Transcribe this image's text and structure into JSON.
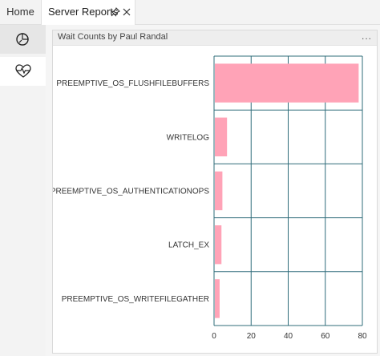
{
  "tabs": {
    "home_label": "Home",
    "active_label": "Server Reports",
    "pin_icon": "pin-icon",
    "close_icon": "close-icon"
  },
  "sidebar": {
    "items": [
      {
        "icon": "chart-dial-icon",
        "selected": true
      },
      {
        "icon": "heart-pulse-icon",
        "selected": false
      }
    ]
  },
  "card": {
    "title": "Wait Counts by Paul Randal",
    "menu_label": "..."
  },
  "colors": {
    "bar": "#ffa3b7",
    "grid": "#2f6c7a",
    "tab_bg": "#f3f3f3"
  },
  "chart_data": {
    "type": "bar",
    "orientation": "horizontal",
    "categories": [
      "PREEMPTIVE_OS_FLUSHFILEBUFFERS",
      "WRITELOG",
      "PREEMPTIVE_OS_AUTHENTICATIONOPS",
      "LATCH_EX",
      "PREEMPTIVE_OS_WRITEFILEGATHER"
    ],
    "values": [
      78,
      7,
      4.5,
      4,
      3
    ],
    "xlim": [
      0,
      80
    ],
    "xticks": [
      0,
      20,
      40,
      60,
      80
    ],
    "title": "",
    "xlabel": "",
    "ylabel": "",
    "grid": true
  }
}
